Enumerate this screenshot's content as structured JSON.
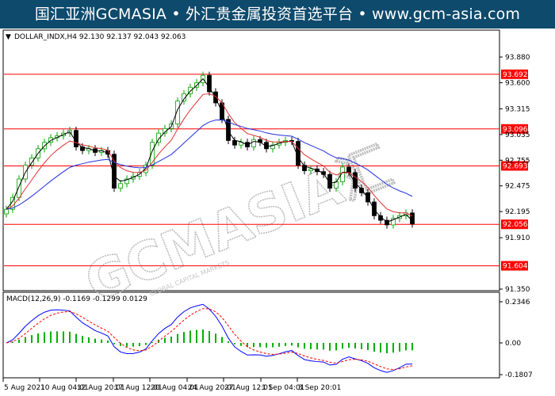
{
  "banner": {
    "title": "国汇亚洲GCMASIA • 外汇贵金属投资首选平台 • www.gcm-asia.com"
  },
  "watermark": {
    "text": "GCMASIA汇",
    "subtext": "GLOBAL CAPITAL MARKETS"
  },
  "colors": {
    "bull": "#00a000",
    "bear": "#000000",
    "level": "#ff0000",
    "ma_fast": "#e03030",
    "ma_slow": "#2030e0",
    "macd_hist": "#00b000",
    "macd_line": "#0000ff",
    "signal_line": "#ff0000",
    "banner_bg": "#0e4a6c"
  },
  "chart_data": {
    "type": "candlestick",
    "symbol_header": "DOLLAR_INDX,H4  92.130 92.137 92.043 92.063",
    "ylim": [
      91.35,
      94.0
    ],
    "y_ticks": [
      "93.880",
      "93.600",
      "93.315",
      "93.035",
      "92.755",
      "92.475",
      "92.195",
      "91.910",
      "91.350"
    ],
    "levels": [
      "93.692",
      "93.096",
      "92.693",
      "92.056",
      "91.604"
    ],
    "x_ticks": [
      "5 Aug 2021",
      "10 Aug 04:01",
      "12 Aug 20:01",
      "17 Aug 12:01",
      "20 Aug 04:01",
      "24 Aug 20:01",
      "27 Aug 12:01",
      "1 Sep 04:01",
      "3 Sep 20:01"
    ],
    "closes": [
      92.22,
      92.35,
      92.55,
      92.7,
      92.78,
      92.88,
      92.95,
      93.0,
      93.02,
      93.05,
      93.08,
      92.9,
      92.86,
      92.88,
      92.84,
      92.86,
      92.82,
      92.45,
      92.5,
      92.55,
      92.58,
      92.62,
      92.7,
      92.95,
      93.05,
      93.1,
      93.15,
      93.4,
      93.48,
      93.55,
      93.6,
      93.68,
      93.5,
      93.38,
      93.2,
      92.97,
      92.92,
      92.95,
      92.9,
      92.98,
      92.95,
      92.88,
      92.92,
      92.95,
      92.97,
      92.96,
      92.7,
      92.64,
      92.66,
      92.63,
      92.6,
      92.45,
      92.52,
      92.68,
      92.62,
      92.45,
      92.4,
      92.3,
      92.15,
      92.1,
      92.05,
      92.12,
      92.15,
      92.18,
      92.06
    ],
    "macd": {
      "label": "MACD(12,26,9) -0.1169 -0.1299 0.0129",
      "y_ticks": [
        "0.2346",
        "0.00",
        "-0.1807"
      ],
      "ylim": [
        -0.1807,
        0.2346
      ]
    }
  }
}
